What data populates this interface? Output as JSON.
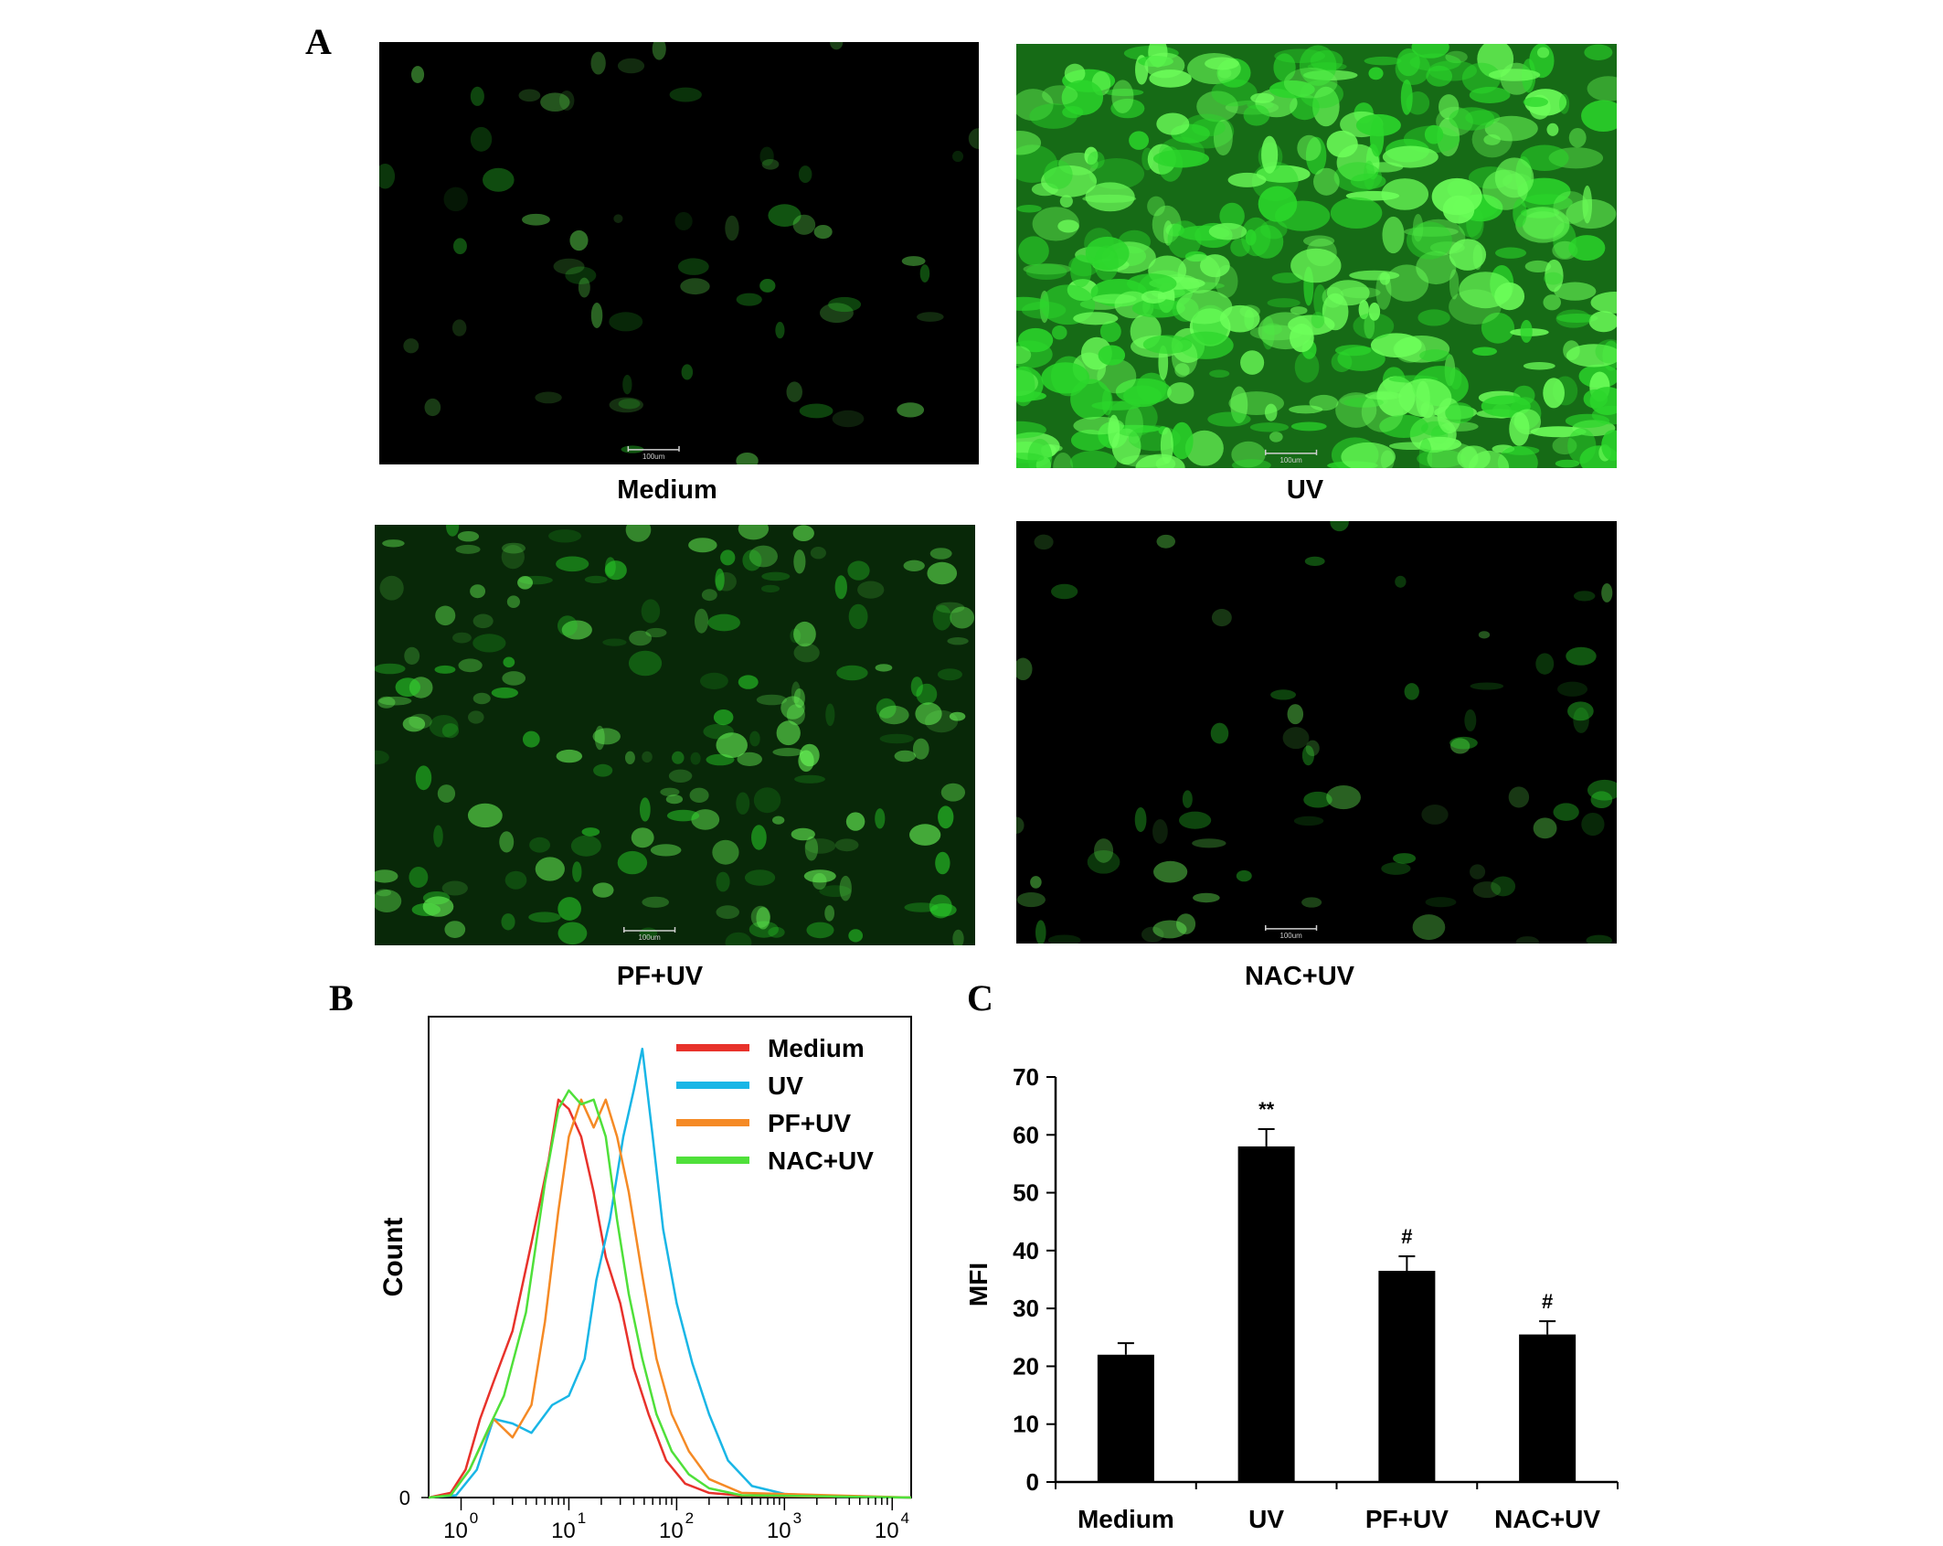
{
  "panel_labels": {
    "a": "A",
    "b": "B",
    "c": "C"
  },
  "micrographs": [
    {
      "caption": "Medium",
      "scale_bar": "100um",
      "intensity": 0.04
    },
    {
      "caption": "UV",
      "scale_bar": "100um",
      "intensity": 0.9
    },
    {
      "caption": "PF+UV",
      "scale_bar": "100um",
      "intensity": 0.35
    },
    {
      "caption": "NAC+UV",
      "scale_bar": "100um",
      "intensity": 0.06
    }
  ],
  "colors": {
    "medium": "#e8322b",
    "uv": "#19b6e6",
    "pf_uv": "#f58a25",
    "nac_uv": "#4fe03a",
    "fluorescence": "#2bd62b",
    "bar": "#000000"
  },
  "chart_data": [
    {
      "type": "line",
      "ylabel": "Count",
      "xscale": "log",
      "xlim": [
        0.5,
        15000
      ],
      "ylim": [
        0,
        1
      ],
      "x_ticks": [
        {
          "value": 1,
          "label": "10",
          "exp": "0"
        },
        {
          "value": 10,
          "label": "10",
          "exp": "1"
        },
        {
          "value": 100,
          "label": "10",
          "exp": "2"
        },
        {
          "value": 1000,
          "label": "10",
          "exp": "3"
        },
        {
          "value": 10000,
          "label": "10",
          "exp": "4"
        }
      ],
      "y_ticks": [
        {
          "value": 0,
          "label": "0"
        }
      ],
      "legend_position": "top-right",
      "series": [
        {
          "name": "Medium",
          "color": "#e8322b",
          "points": [
            [
              0.5,
              0
            ],
            [
              0.8,
              0.01
            ],
            [
              1.1,
              0.06
            ],
            [
              1.5,
              0.17
            ],
            [
              2,
              0.25
            ],
            [
              3,
              0.36
            ],
            [
              4.5,
              0.55
            ],
            [
              6.5,
              0.73
            ],
            [
              8,
              0.86
            ],
            [
              10,
              0.84
            ],
            [
              13,
              0.78
            ],
            [
              17,
              0.66
            ],
            [
              22,
              0.52
            ],
            [
              30,
              0.42
            ],
            [
              40,
              0.28
            ],
            [
              55,
              0.18
            ],
            [
              80,
              0.08
            ],
            [
              120,
              0.03
            ],
            [
              200,
              0.01
            ],
            [
              400,
              0.004
            ],
            [
              15000,
              0
            ]
          ]
        },
        {
          "name": "UV",
          "color": "#19b6e6",
          "points": [
            [
              0.5,
              0
            ],
            [
              0.9,
              0.005
            ],
            [
              1.4,
              0.06
            ],
            [
              2,
              0.17
            ],
            [
              3,
              0.16
            ],
            [
              4.5,
              0.14
            ],
            [
              7,
              0.2
            ],
            [
              10,
              0.22
            ],
            [
              14,
              0.3
            ],
            [
              18,
              0.47
            ],
            [
              24,
              0.6
            ],
            [
              32,
              0.78
            ],
            [
              40,
              0.88
            ],
            [
              48,
              0.97
            ],
            [
              60,
              0.78
            ],
            [
              75,
              0.58
            ],
            [
              100,
              0.42
            ],
            [
              140,
              0.29
            ],
            [
              200,
              0.18
            ],
            [
              300,
              0.08
            ],
            [
              500,
              0.025
            ],
            [
              1000,
              0.008
            ],
            [
              3000,
              0.002
            ],
            [
              15000,
              0
            ]
          ]
        },
        {
          "name": "PF+UV",
          "color": "#f58a25",
          "points": [
            [
              0.5,
              0
            ],
            [
              0.8,
              0.005
            ],
            [
              1.2,
              0.06
            ],
            [
              2,
              0.17
            ],
            [
              3,
              0.13
            ],
            [
              4.5,
              0.2
            ],
            [
              6,
              0.38
            ],
            [
              8,
              0.62
            ],
            [
              10,
              0.78
            ],
            [
              13,
              0.86
            ],
            [
              17,
              0.8
            ],
            [
              22,
              0.86
            ],
            [
              28,
              0.78
            ],
            [
              36,
              0.66
            ],
            [
              48,
              0.48
            ],
            [
              65,
              0.3
            ],
            [
              90,
              0.18
            ],
            [
              130,
              0.1
            ],
            [
              200,
              0.04
            ],
            [
              400,
              0.01
            ],
            [
              15000,
              0
            ]
          ]
        },
        {
          "name": "NAC+UV",
          "color": "#4fe03a",
          "points": [
            [
              0.5,
              0
            ],
            [
              0.8,
              0.005
            ],
            [
              1.2,
              0.06
            ],
            [
              1.8,
              0.15
            ],
            [
              2.5,
              0.22
            ],
            [
              4,
              0.4
            ],
            [
              6,
              0.68
            ],
            [
              8,
              0.84
            ],
            [
              10,
              0.88
            ],
            [
              13,
              0.85
            ],
            [
              17,
              0.86
            ],
            [
              22,
              0.78
            ],
            [
              28,
              0.6
            ],
            [
              36,
              0.44
            ],
            [
              48,
              0.3
            ],
            [
              65,
              0.18
            ],
            [
              90,
              0.1
            ],
            [
              130,
              0.05
            ],
            [
              200,
              0.02
            ],
            [
              400,
              0.005
            ],
            [
              15000,
              0
            ]
          ]
        }
      ]
    },
    {
      "type": "bar",
      "ylabel": "MFI",
      "ylim": [
        0,
        70
      ],
      "y_ticks": [
        0,
        10,
        20,
        30,
        40,
        50,
        60,
        70
      ],
      "categories": [
        "Medium",
        "UV",
        "PF+UV",
        "NAC+UV"
      ],
      "values": [
        22,
        58,
        36.5,
        25.5
      ],
      "errors": [
        2,
        3,
        2.5,
        2.3
      ],
      "annotations": [
        "",
        "**",
        "#",
        "#"
      ]
    }
  ]
}
